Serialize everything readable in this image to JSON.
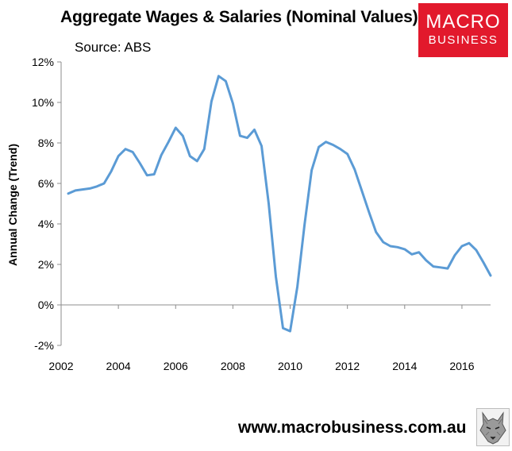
{
  "header": {
    "title": "Aggregate Wages & Salaries (Nominal Values)",
    "source": "Source: ABS"
  },
  "logo": {
    "line1": "MACRO",
    "line2": "BUSINESS"
  },
  "footer": {
    "url": "www.macrobusiness.com.au"
  },
  "chart_data": {
    "type": "line",
    "title": "Aggregate Wages & Salaries (Nominal Values)",
    "ylabel": "Annual Change (Trend)",
    "xlabel": "",
    "xlim": [
      2002,
      2017
    ],
    "ylim": [
      -2,
      12
    ],
    "x_ticks": [
      2002,
      2004,
      2006,
      2008,
      2010,
      2012,
      2014,
      2016
    ],
    "x_tick_labels": [
      "2002",
      "2004",
      "2006",
      "2008",
      "2010",
      "2012",
      "2014",
      "2016"
    ],
    "y_ticks": [
      -2,
      0,
      2,
      4,
      6,
      8,
      10,
      12
    ],
    "y_tick_labels": [
      "-2%",
      "0%",
      "2%",
      "4%",
      "6%",
      "8%",
      "10%",
      "12%"
    ],
    "grid": false,
    "legend": "none",
    "series_color": "#5b9bd5",
    "series": [
      {
        "x": [
          2002.25,
          2002.5,
          2002.75,
          2003.0,
          2003.25,
          2003.5,
          2003.75,
          2004.0,
          2004.25,
          2004.5,
          2004.75,
          2005.0,
          2005.25,
          2005.5,
          2005.75,
          2006.0,
          2006.25,
          2006.5,
          2006.75,
          2007.0,
          2007.25,
          2007.5,
          2007.75,
          2008.0,
          2008.25,
          2008.5,
          2008.75,
          2009.0,
          2009.25,
          2009.5,
          2009.75,
          2010.0,
          2010.25,
          2010.5,
          2010.75,
          2011.0,
          2011.25,
          2011.5,
          2011.75,
          2012.0,
          2012.25,
          2012.5,
          2012.75,
          2013.0,
          2013.25,
          2013.5,
          2013.75,
          2014.0,
          2014.25,
          2014.5,
          2014.75,
          2015.0,
          2015.25,
          2015.5,
          2015.75,
          2016.0,
          2016.25,
          2016.5,
          2016.75,
          2017.0
        ],
        "values": [
          5.5,
          5.65,
          5.7,
          5.75,
          5.85,
          6.0,
          6.6,
          7.35,
          7.7,
          7.55,
          7.0,
          6.4,
          6.45,
          7.4,
          8.05,
          8.75,
          8.35,
          7.35,
          7.1,
          7.7,
          10.05,
          11.3,
          11.05,
          9.95,
          8.35,
          8.25,
          8.65,
          7.85,
          5.0,
          1.4,
          -1.15,
          -1.3,
          0.9,
          3.95,
          6.65,
          7.8,
          8.05,
          7.9,
          7.7,
          7.45,
          6.7,
          5.65,
          4.6,
          3.6,
          3.1,
          2.9,
          2.85,
          2.75,
          2.5,
          2.6,
          2.2,
          1.9,
          1.85,
          1.8,
          2.45,
          2.9,
          3.05,
          2.7,
          2.1,
          1.45
        ]
      }
    ]
  }
}
